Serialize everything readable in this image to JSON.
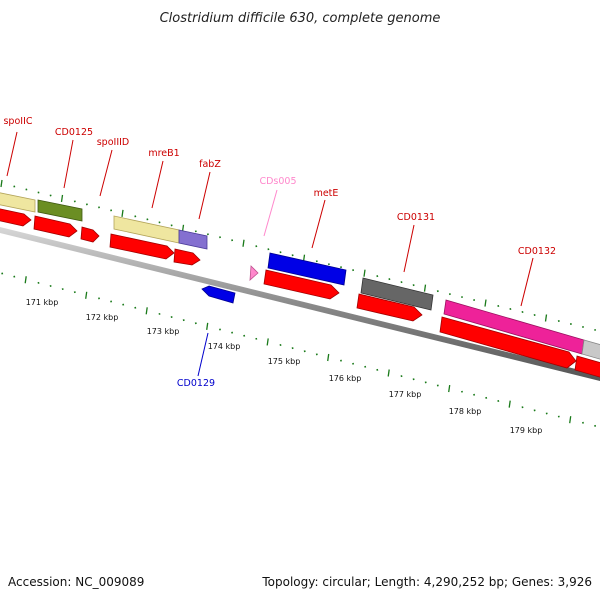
{
  "title": "Clostridium difficile 630, complete genome",
  "footer": {
    "accession": "Accession: NC_009089",
    "summary": "Topology: circular; Length: 4,290,252 bp; Genes: 3,926"
  },
  "colors": {
    "backbone": "#8c8c8c",
    "tick": "#1a7a1a",
    "gene": "#ff0000",
    "forward_label": "#cc0000",
    "reverse_label": "#0000cc",
    "ncrna_label": "#ff88cc"
  },
  "scale": {
    "labels": [
      "171 kbp",
      "172 kbp",
      "173 kbp",
      "174 kbp",
      "175 kbp",
      "176 kbp",
      "177 kbp",
      "178 kbp",
      "179 kbp"
    ]
  },
  "labels": [
    {
      "text": "spoIIC",
      "color": "#cc0000"
    },
    {
      "text": "CD0125",
      "color": "#cc0000"
    },
    {
      "text": "spoIIID",
      "color": "#cc0000"
    },
    {
      "text": "mreB1",
      "color": "#cc0000"
    },
    {
      "text": "fabZ",
      "color": "#cc0000"
    },
    {
      "text": "CDs005",
      "color": "#ff88cc"
    },
    {
      "text": "metE",
      "color": "#cc0000"
    },
    {
      "text": "CD0131",
      "color": "#cc0000"
    },
    {
      "text": "CD0132",
      "color": "#cc0000"
    },
    {
      "text": "CD0129",
      "color": "#0000cc"
    }
  ]
}
